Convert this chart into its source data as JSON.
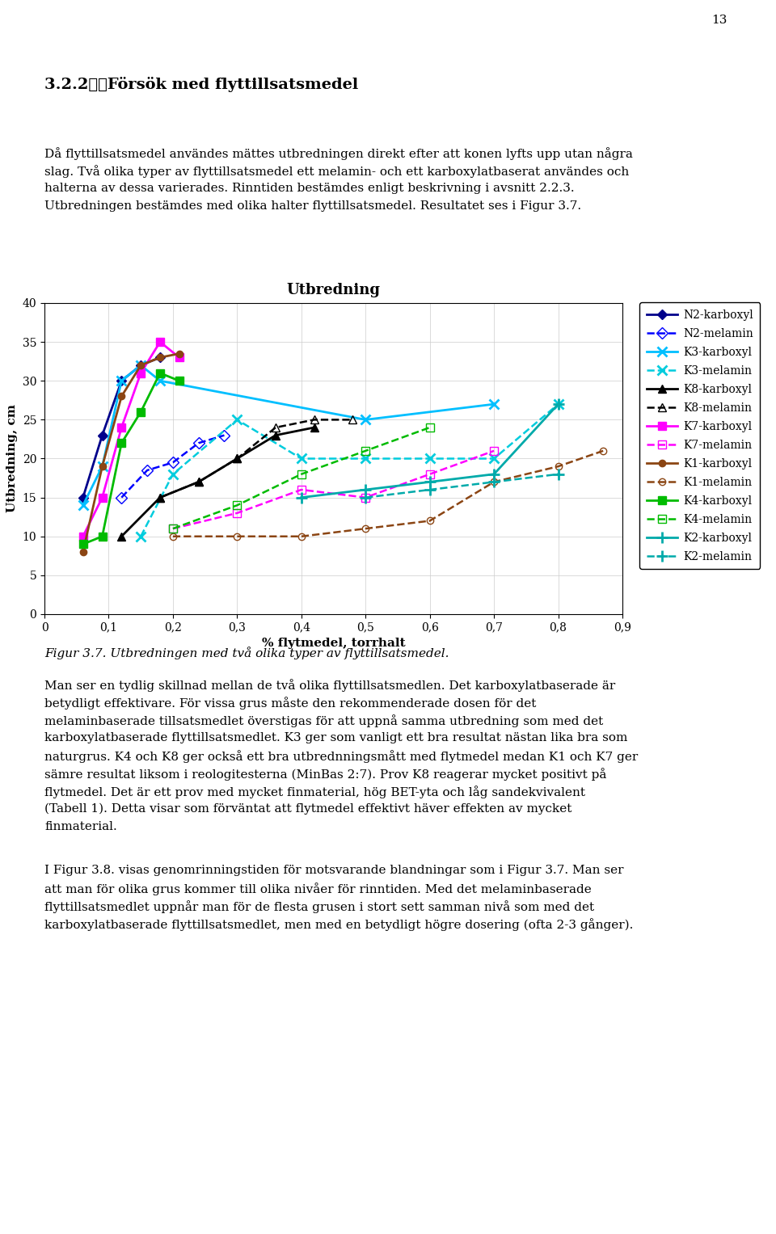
{
  "title": "Utbredning",
  "xlabel": "% flytmedel, torrhalt",
  "ylabel": "Utbredning, cm",
  "xlim": [
    0,
    0.9
  ],
  "ylim": [
    0,
    40
  ],
  "xticks": [
    0,
    0.1,
    0.2,
    0.3,
    0.4,
    0.5,
    0.6,
    0.7,
    0.8,
    0.9
  ],
  "yticks": [
    0,
    5,
    10,
    15,
    20,
    25,
    30,
    35,
    40
  ],
  "xtick_labels": [
    "0",
    "0,1",
    "0,2",
    "0,3",
    "0,4",
    "0,5",
    "0,6",
    "0,7",
    "0,8",
    "0,9"
  ],
  "series": [
    {
      "label": "N2-karboxyl",
      "color": "#00008B",
      "linestyle": "-",
      "marker": "D",
      "markerfacecolor": "#00008B",
      "markersize": 6,
      "lw": 2.0,
      "x": [
        0.06,
        0.09,
        0.12,
        0.15,
        0.18
      ],
      "y": [
        15.0,
        23.0,
        30.0,
        32.0,
        33.0
      ]
    },
    {
      "label": "N2-melamin",
      "color": "#0000FF",
      "linestyle": "--",
      "marker": "D",
      "markerfacecolor": "none",
      "markersize": 7,
      "lw": 1.8,
      "x": [
        0.12,
        0.16,
        0.2,
        0.24,
        0.28
      ],
      "y": [
        15.0,
        18.5,
        19.5,
        22.0,
        23.0
      ]
    },
    {
      "label": "K3-karboxyl",
      "color": "#00BFFF",
      "linestyle": "-",
      "marker": "x",
      "markerfacecolor": "#00BFFF",
      "markersize": 9,
      "markeredgewidth": 2.0,
      "lw": 2.0,
      "x": [
        0.06,
        0.09,
        0.12,
        0.15,
        0.18,
        0.5,
        0.7
      ],
      "y": [
        14.0,
        19.0,
        30.0,
        32.0,
        30.0,
        25.0,
        27.0
      ]
    },
    {
      "label": "K3-melamin",
      "color": "#00CCDD",
      "linestyle": "--",
      "marker": "x",
      "markerfacecolor": "#00CCDD",
      "markersize": 9,
      "markeredgewidth": 2.0,
      "lw": 1.8,
      "x": [
        0.15,
        0.2,
        0.3,
        0.4,
        0.5,
        0.6,
        0.7,
        0.8
      ],
      "y": [
        10.0,
        18.0,
        25.0,
        20.0,
        20.0,
        20.0,
        20.0,
        27.0
      ]
    },
    {
      "label": "K8-karboxyl",
      "color": "#000000",
      "linestyle": "-",
      "marker": "^",
      "markerfacecolor": "#000000",
      "markersize": 7,
      "lw": 2.0,
      "x": [
        0.12,
        0.18,
        0.24,
        0.3,
        0.36,
        0.42
      ],
      "y": [
        10.0,
        15.0,
        17.0,
        20.0,
        23.0,
        24.0
      ]
    },
    {
      "label": "K8-melamin",
      "color": "#000000",
      "linestyle": "--",
      "marker": "^",
      "markerfacecolor": "none",
      "markersize": 7,
      "lw": 1.8,
      "x": [
        0.18,
        0.24,
        0.3,
        0.36,
        0.42,
        0.48
      ],
      "y": [
        15.0,
        17.0,
        20.0,
        24.0,
        25.0,
        25.0
      ]
    },
    {
      "label": "K7-karboxyl",
      "color": "#FF00FF",
      "linestyle": "-",
      "marker": "s",
      "markerfacecolor": "#FF00FF",
      "markersize": 7,
      "lw": 2.0,
      "x": [
        0.06,
        0.09,
        0.12,
        0.15,
        0.18,
        0.21
      ],
      "y": [
        10.0,
        15.0,
        24.0,
        31.0,
        35.0,
        33.0
      ]
    },
    {
      "label": "K7-melamin",
      "color": "#FF00FF",
      "linestyle": "--",
      "marker": "s",
      "markerfacecolor": "none",
      "markersize": 7,
      "lw": 1.8,
      "x": [
        0.2,
        0.3,
        0.4,
        0.5,
        0.6,
        0.7
      ],
      "y": [
        11.0,
        13.0,
        16.0,
        15.0,
        18.0,
        21.0
      ]
    },
    {
      "label": "K1-karboxyl",
      "color": "#8B4513",
      "linestyle": "-",
      "marker": "o",
      "markerfacecolor": "#8B4513",
      "markersize": 6,
      "lw": 2.0,
      "x": [
        0.06,
        0.09,
        0.12,
        0.15,
        0.18,
        0.21
      ],
      "y": [
        8.0,
        19.0,
        28.0,
        32.0,
        33.0,
        33.5
      ]
    },
    {
      "label": "K1-melamin",
      "color": "#8B4513",
      "linestyle": "--",
      "marker": "o",
      "markerfacecolor": "none",
      "markersize": 6,
      "lw": 1.8,
      "x": [
        0.2,
        0.3,
        0.4,
        0.5,
        0.6,
        0.7,
        0.8,
        0.87
      ],
      "y": [
        10.0,
        10.0,
        10.0,
        11.0,
        12.0,
        17.0,
        19.0,
        21.0
      ]
    },
    {
      "label": "K4-karboxyl",
      "color": "#00BB00",
      "linestyle": "-",
      "marker": "s",
      "markerfacecolor": "#00BB00",
      "markersize": 7,
      "lw": 2.0,
      "x": [
        0.06,
        0.09,
        0.12,
        0.15,
        0.18,
        0.21
      ],
      "y": [
        9.0,
        10.0,
        22.0,
        26.0,
        31.0,
        30.0
      ]
    },
    {
      "label": "K4-melamin",
      "color": "#00BB00",
      "linestyle": "--",
      "marker": "s",
      "markerfacecolor": "none",
      "markersize": 7,
      "lw": 1.8,
      "x": [
        0.2,
        0.3,
        0.4,
        0.5,
        0.6
      ],
      "y": [
        11.0,
        14.0,
        18.0,
        21.0,
        24.0
      ]
    },
    {
      "label": "K2-karboxyl",
      "color": "#00AAAA",
      "linestyle": "-",
      "marker": "+",
      "markerfacecolor": "#00AAAA",
      "markersize": 10,
      "markeredgewidth": 2.0,
      "lw": 2.0,
      "x": [
        0.4,
        0.5,
        0.6,
        0.7,
        0.8
      ],
      "y": [
        15.0,
        16.0,
        17.0,
        18.0,
        27.0
      ]
    },
    {
      "label": "K2-melamin",
      "color": "#00AAAA",
      "linestyle": "--",
      "marker": "+",
      "markerfacecolor": "#00AAAA",
      "markersize": 10,
      "markeredgewidth": 2.0,
      "lw": 1.8,
      "x": [
        0.5,
        0.6,
        0.7,
        0.8
      ],
      "y": [
        15.0,
        16.0,
        17.0,
        18.0
      ]
    }
  ],
  "figsize": [
    9.6,
    15.27
  ],
  "dpi": 100,
  "background_color": "#FFFFFF",
  "page_number": "13",
  "heading": "3.2.2\t\tFörsök med flyttillsatsmedel",
  "intro_line1": "Då flyttillsatsmedel användes mättes utbredningen direkt efter att konen lyfts upp utan några",
  "intro_line2": "slag. Två olika typer av flyttillsatsmedel ett melamin- och ett karboxylatbaserat användes och",
  "intro_line3": "halterna av dessa varierades. Rinntiden bestämdes enligt beskrivning i avsnitt 2.2.3.",
  "intro_line4": "Utbredningen bestämdes med olika halter flyttillsatsmedel. Resultatet ses i Figur 3.7.",
  "caption": "Figur 3.7. Utbredningen med två olika typer av flyttillsatsmedel.",
  "body_line1": "Man ser en tydlig skillnad mellan de två olika flyttillsatsmedlen. Det karboxylatbaserade är",
  "body_line2": "betydligt effektivare. För vissa grus måste den rekommenderade dosen för det",
  "body_line3": "melaminbaserade tillsatsmedlet överstigas för att uppnå samma utbredning som med det",
  "body_line4": "karboxylatbaserade flyttillsatsmedlet. K3 ger som vanligt ett bra resultat nästan lika bra som",
  "body_line5": "naturgrus. K4 och K8 ger också ett bra utbrednningsmått med flytmedel medan K1 och K7 ger",
  "body_line6": "sämre resultat liksom i reologitesterna (MinBas 2:7). Prov K8 reagerar mycket positivt på",
  "body_line7": "flytmedel. Det är ett prov med mycket finmaterial, hög BET-yta och låg sandekvivalent",
  "body_line8": "(Tabell 1). Detta visar som förväntat att flytmedel effektivt häver effekten av mycket",
  "body_line9": "finmaterial.",
  "footer_line1": "I Figur 3.8. visas genomrinningstiden för motsvarande blandningar som i Figur 3.7. Man ser",
  "footer_line2": "att man för olika grus kommer till olika nivåer för rinntiden. Med det melaminbaserade",
  "footer_line3": "flyttillsatsmedlet uppnår man för de flesta grusen i stort sett samman nivå som med det",
  "footer_line4": "karboxylatbaserade flyttillsatsmedlet, men med en betydligt högre dosering (ofta 2-3 gånger)."
}
